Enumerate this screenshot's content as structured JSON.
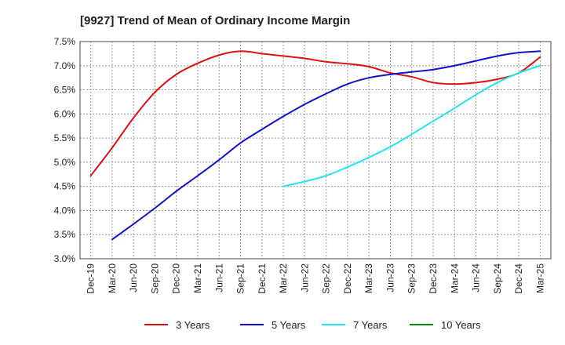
{
  "chart_data": {
    "type": "line",
    "title": "[9927]  Trend of Mean of Ordinary Income Margin",
    "xlabel": "",
    "ylabel": "",
    "ylim": [
      3.0,
      7.5
    ],
    "y_ticks": [
      "3.0%",
      "3.5%",
      "4.0%",
      "4.5%",
      "5.0%",
      "5.5%",
      "6.0%",
      "6.5%",
      "7.0%",
      "7.5%"
    ],
    "x_ticks": [
      "Dec-19",
      "Mar-20",
      "Jun-20",
      "Sep-20",
      "Dec-20",
      "Mar-21",
      "Jun-21",
      "Sep-21",
      "Dec-21",
      "Mar-22",
      "Jun-22",
      "Sep-22",
      "Dec-22",
      "Mar-23",
      "Jun-23",
      "Sep-23",
      "Dec-23",
      "Mar-24",
      "Jun-24",
      "Sep-24",
      "Dec-24",
      "Mar-25"
    ],
    "grid": true,
    "legend_position": "bottom",
    "series": [
      {
        "name": "3 Years",
        "color": "#dd1111",
        "values": [
          4.72,
          5.3,
          5.92,
          6.45,
          6.82,
          7.05,
          7.22,
          7.3,
          7.25,
          7.2,
          7.15,
          7.08,
          7.04,
          6.98,
          6.85,
          6.77,
          6.65,
          6.62,
          6.65,
          6.72,
          6.85,
          7.18
        ]
      },
      {
        "name": "5 Years",
        "color": "#1111cc",
        "values": [
          null,
          3.4,
          3.72,
          4.05,
          4.4,
          4.72,
          5.05,
          5.4,
          5.68,
          5.95,
          6.2,
          6.42,
          6.62,
          6.75,
          6.82,
          6.87,
          6.92,
          7.0,
          7.1,
          7.2,
          7.27,
          7.3
        ]
      },
      {
        "name": "7 Years",
        "color": "#22e5ee",
        "values": [
          null,
          null,
          null,
          null,
          null,
          null,
          null,
          null,
          null,
          4.5,
          4.6,
          4.72,
          4.9,
          5.1,
          5.32,
          5.58,
          5.85,
          6.12,
          6.4,
          6.65,
          6.85,
          7.0
        ]
      },
      {
        "name": "10 Years",
        "color": "#118811",
        "values": []
      }
    ]
  }
}
